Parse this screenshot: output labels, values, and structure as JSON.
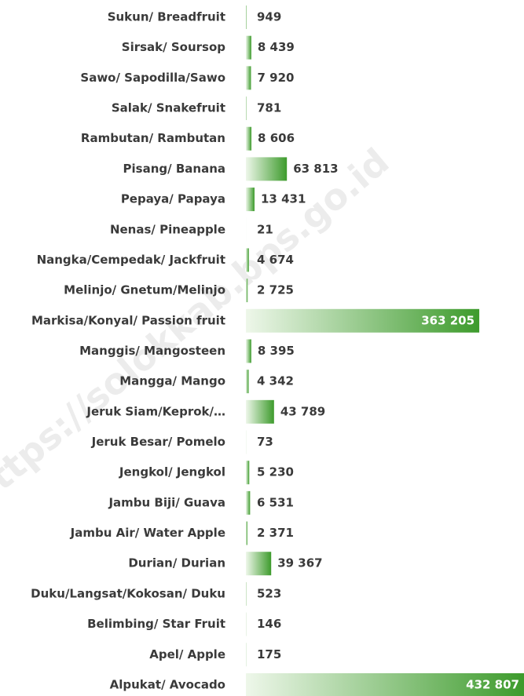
{
  "chart_data": {
    "type": "bar",
    "orientation": "horizontal",
    "color": "#3d9b2c",
    "watermark": "https://solokkab.bps.go.id",
    "categories": [
      "Sukun/ Breadfruit",
      "Sirsak/ Soursop",
      "Sawo/ Sapodilla/Sawo",
      "Salak/ Snakefruit",
      "Rambutan/ Rambutan",
      "Pisang/ Banana",
      "Pepaya/ Papaya",
      "Nenas/ Pineapple",
      "Nangka/Cempedak/ Jackfruit",
      "Melinjo/ Gnetum/Melinjo",
      "Markisa/Konyal/ Passion fruit",
      "Manggis/ Mangosteen",
      "Mangga/ Mango",
      "Jeruk Siam/Keprok/…",
      "Jeruk Besar/ Pomelo",
      "Jengkol/ Jengkol",
      "Jambu Biji/ Guava",
      "Jambu Air/ Water Apple",
      "Durian/ Durian",
      "Duku/Langsat/Kokosan/ Duku",
      "Belimbing/ Star Fruit",
      "Apel/ Apple",
      "Alpukat/ Avocado"
    ],
    "values": [
      949,
      8439,
      7920,
      781,
      8606,
      63813,
      13431,
      21,
      4674,
      2725,
      363205,
      8395,
      4342,
      43789,
      73,
      5230,
      6531,
      2371,
      39367,
      523,
      146,
      175,
      432807
    ],
    "value_labels": [
      "949",
      "8 439",
      "7 920",
      "781",
      "8 606",
      "63 813",
      "13 431",
      "21",
      "4 674",
      "2 725",
      "363 205",
      "8 395",
      "4 342",
      "43 789",
      "73",
      "5 230",
      "6 531",
      "2 371",
      "39 367",
      "523",
      "146",
      "175",
      "432 807"
    ]
  }
}
